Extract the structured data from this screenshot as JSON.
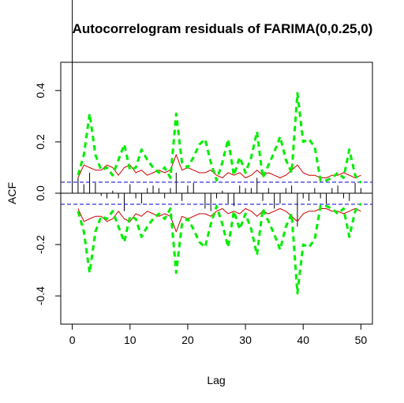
{
  "chart_data": {
    "type": "line",
    "title": "Autocorrelogram residuals of FARIMA(0,0.25,0)",
    "xlabel": "Lag",
    "ylabel": "ACF",
    "xlim": [
      -2,
      52
    ],
    "ylim": [
      -0.51,
      0.51
    ],
    "xticks": [
      0,
      10,
      20,
      30,
      40,
      50
    ],
    "xtick_labels": [
      "0",
      "10",
      "20",
      "30",
      "40",
      "50"
    ],
    "yticks": [
      -0.4,
      -0.2,
      0.0,
      0.2,
      0.4
    ],
    "ytick_labels": [
      "-0.4",
      "-0.2",
      "0.0",
      "0.2",
      "0.4"
    ],
    "confidence_band": 0.043,
    "lags": [
      0,
      1,
      2,
      3,
      4,
      5,
      6,
      7,
      8,
      9,
      10,
      11,
      12,
      13,
      14,
      15,
      16,
      17,
      18,
      19,
      20,
      21,
      22,
      23,
      24,
      25,
      26,
      27,
      28,
      29,
      30,
      31,
      32,
      33,
      34,
      35,
      36,
      37,
      38,
      39,
      40,
      41,
      42,
      43,
      44,
      45,
      46,
      47,
      48,
      49,
      50
    ],
    "acf": [
      1.0,
      0.06,
      0.035,
      0.08,
      0.04,
      -0.01,
      -0.02,
      0.01,
      -0.02,
      -0.07,
      0.035,
      -0.02,
      -0.04,
      0.02,
      0.03,
      0.02,
      -0.02,
      0.02,
      0.08,
      -0.03,
      0.03,
      0.04,
      0.0,
      -0.06,
      -0.07,
      -0.02,
      0.01,
      -0.04,
      -0.05,
      0.03,
      0.02,
      0.02,
      0.06,
      -0.03,
      0.02,
      -0.06,
      -0.04,
      0.02,
      0.03,
      -0.13,
      -0.02,
      -0.03,
      0.02,
      -0.02,
      -0.04,
      0.02,
      0.03,
      -0.02,
      -0.03,
      0.04,
      0.02
    ],
    "series": [
      {
        "color": "#cc0000",
        "style": "solid",
        "x": [
          1,
          2,
          3,
          4,
          5,
          6,
          7,
          8,
          9,
          10,
          11,
          12,
          13,
          14,
          15,
          16,
          17,
          18,
          19,
          20,
          21,
          22,
          23,
          24,
          25,
          26,
          27,
          28,
          29,
          30,
          31,
          32,
          33,
          34,
          35,
          36,
          37,
          38,
          39,
          40,
          41,
          42,
          43,
          44,
          45,
          46,
          47,
          48,
          49,
          50
        ],
        "upper": [
          0.06,
          0.11,
          0.1,
          0.09,
          0.09,
          0.11,
          0.1,
          0.07,
          0.1,
          0.11,
          0.08,
          0.09,
          0.07,
          0.08,
          0.09,
          0.08,
          0.09,
          0.15,
          0.09,
          0.1,
          0.09,
          0.08,
          0.08,
          0.09,
          0.07,
          0.06,
          0.08,
          0.07,
          0.08,
          0.06,
          0.07,
          0.09,
          0.07,
          0.08,
          0.07,
          0.06,
          0.07,
          0.09,
          0.11,
          0.08,
          0.07,
          0.07,
          0.06,
          0.06,
          0.07,
          0.07,
          0.08,
          0.07,
          0.06,
          0.07
        ],
        "lower": [
          -0.06,
          -0.11,
          -0.1,
          -0.09,
          -0.09,
          -0.11,
          -0.1,
          -0.07,
          -0.1,
          -0.11,
          -0.08,
          -0.09,
          -0.07,
          -0.08,
          -0.09,
          -0.08,
          -0.09,
          -0.15,
          -0.09,
          -0.1,
          -0.09,
          -0.08,
          -0.08,
          -0.09,
          -0.07,
          -0.06,
          -0.08,
          -0.07,
          -0.08,
          -0.06,
          -0.07,
          -0.09,
          -0.07,
          -0.08,
          -0.07,
          -0.06,
          -0.07,
          -0.09,
          -0.11,
          -0.08,
          -0.07,
          -0.07,
          -0.06,
          -0.06,
          -0.07,
          -0.07,
          -0.08,
          -0.07,
          -0.06,
          -0.07
        ]
      },
      {
        "color": "#00ee00",
        "style": "dashed",
        "x": [
          1,
          2,
          3,
          4,
          5,
          6,
          7,
          8,
          9,
          10,
          11,
          12,
          13,
          14,
          15,
          16,
          17,
          18,
          19,
          20,
          21,
          22,
          23,
          24,
          25,
          26,
          27,
          28,
          29,
          30,
          31,
          32,
          33,
          34,
          35,
          36,
          37,
          38,
          39,
          40,
          41,
          42,
          43,
          44,
          45,
          46,
          47,
          48,
          49,
          50
        ],
        "upper": [
          0.07,
          0.15,
          0.31,
          0.15,
          0.09,
          0.1,
          0.07,
          0.13,
          0.19,
          0.09,
          0.1,
          0.17,
          0.13,
          0.1,
          0.08,
          0.1,
          0.06,
          0.31,
          0.12,
          0.1,
          0.14,
          0.19,
          0.21,
          0.12,
          0.05,
          0.12,
          0.21,
          0.07,
          0.14,
          0.08,
          0.14,
          0.24,
          0.06,
          0.11,
          0.16,
          0.22,
          0.13,
          0.08,
          0.39,
          0.2,
          0.21,
          0.18,
          0.05,
          0.05,
          0.06,
          0.08,
          0.06,
          0.17,
          0.07,
          0.04
        ],
        "lower": [
          -0.07,
          -0.15,
          -0.31,
          -0.15,
          -0.09,
          -0.1,
          -0.07,
          -0.13,
          -0.19,
          -0.09,
          -0.1,
          -0.17,
          -0.13,
          -0.1,
          -0.08,
          -0.1,
          -0.06,
          -0.31,
          -0.12,
          -0.1,
          -0.14,
          -0.19,
          -0.21,
          -0.12,
          -0.05,
          -0.12,
          -0.21,
          -0.07,
          -0.14,
          -0.08,
          -0.14,
          -0.24,
          -0.06,
          -0.11,
          -0.16,
          -0.22,
          -0.13,
          -0.08,
          -0.39,
          -0.2,
          -0.21,
          -0.18,
          -0.05,
          -0.05,
          -0.06,
          -0.08,
          -0.06,
          -0.17,
          -0.07,
          -0.04
        ]
      }
    ],
    "band_color": "#0000cc",
    "grid": false,
    "legend": "none"
  }
}
